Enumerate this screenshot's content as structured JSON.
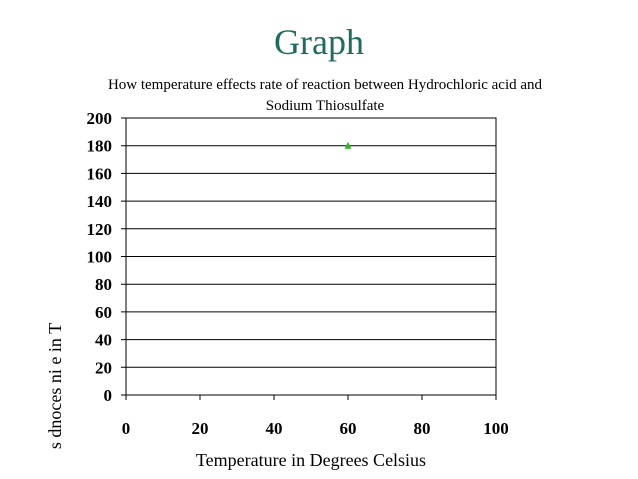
{
  "slide": {
    "title": "Graph"
  },
  "chart_data": {
    "type": "scatter",
    "title": "How temperature effects rate of reaction between Hydrochloric acid and Sodium Thiosulfate",
    "xlabel": "Temperature in Degrees Celsius",
    "ylabel": "s dnoces ni e in T",
    "xlim": [
      0,
      100
    ],
    "ylim": [
      0,
      200
    ],
    "x_ticks": [
      0,
      20,
      40,
      60,
      80,
      100
    ],
    "y_ticks": [
      0,
      20,
      40,
      60,
      80,
      100,
      120,
      140,
      160,
      180,
      200
    ],
    "grid": "horizontal",
    "legend": "none",
    "series": [
      {
        "color": "#2bb82b",
        "marker": "triangle",
        "points": [
          {
            "x": 60,
            "y": 180
          }
        ]
      }
    ]
  }
}
